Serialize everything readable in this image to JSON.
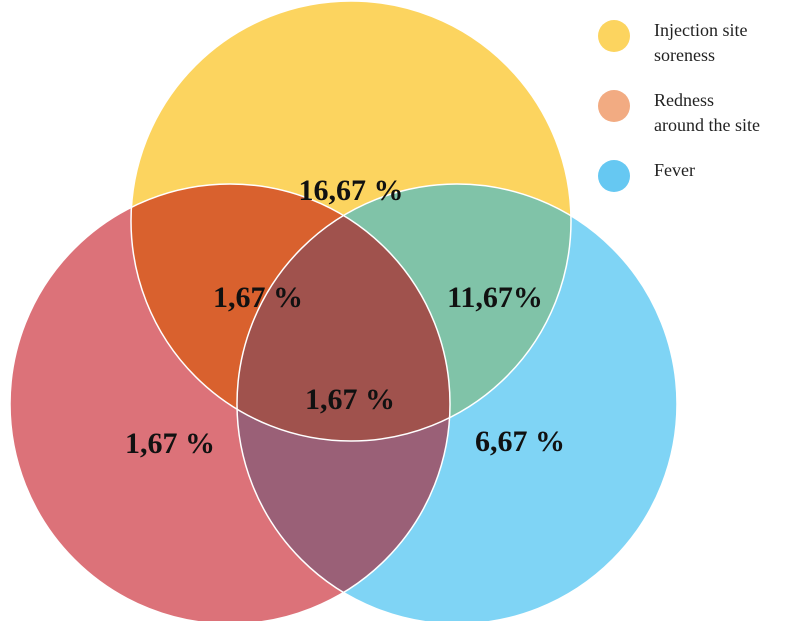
{
  "sets": [
    {
      "name": "Injection site soreness",
      "lines": [
        "Injection site",
        "soreness"
      ],
      "color": "#fcd45f"
    },
    {
      "name": "Redness around the site",
      "lines": [
        "Redness",
        "around the site"
      ],
      "color": "#f2ab82"
    },
    {
      "name": "Fever",
      "lines": [
        "Fever"
      ],
      "color": "#66c8f2"
    }
  ],
  "regions": {
    "soreness_only": "16,67 %",
    "soreness_redness": "1,67 %",
    "soreness_fever": "11,67%",
    "all_three": "1,67 %",
    "redness_only": "1,67 %",
    "fever_only": "6,67 %"
  },
  "colors": {
    "circle_soreness": "#fcd45f",
    "circle_redness": "#dc7279",
    "circle_fever": "#7fd4f5",
    "overlap_soreness_redness": "#d9612e",
    "overlap_soreness_fever": "#80c3a8",
    "overlap_redness_fever": "#9a6077",
    "overlap_all": "#a0524d"
  }
}
